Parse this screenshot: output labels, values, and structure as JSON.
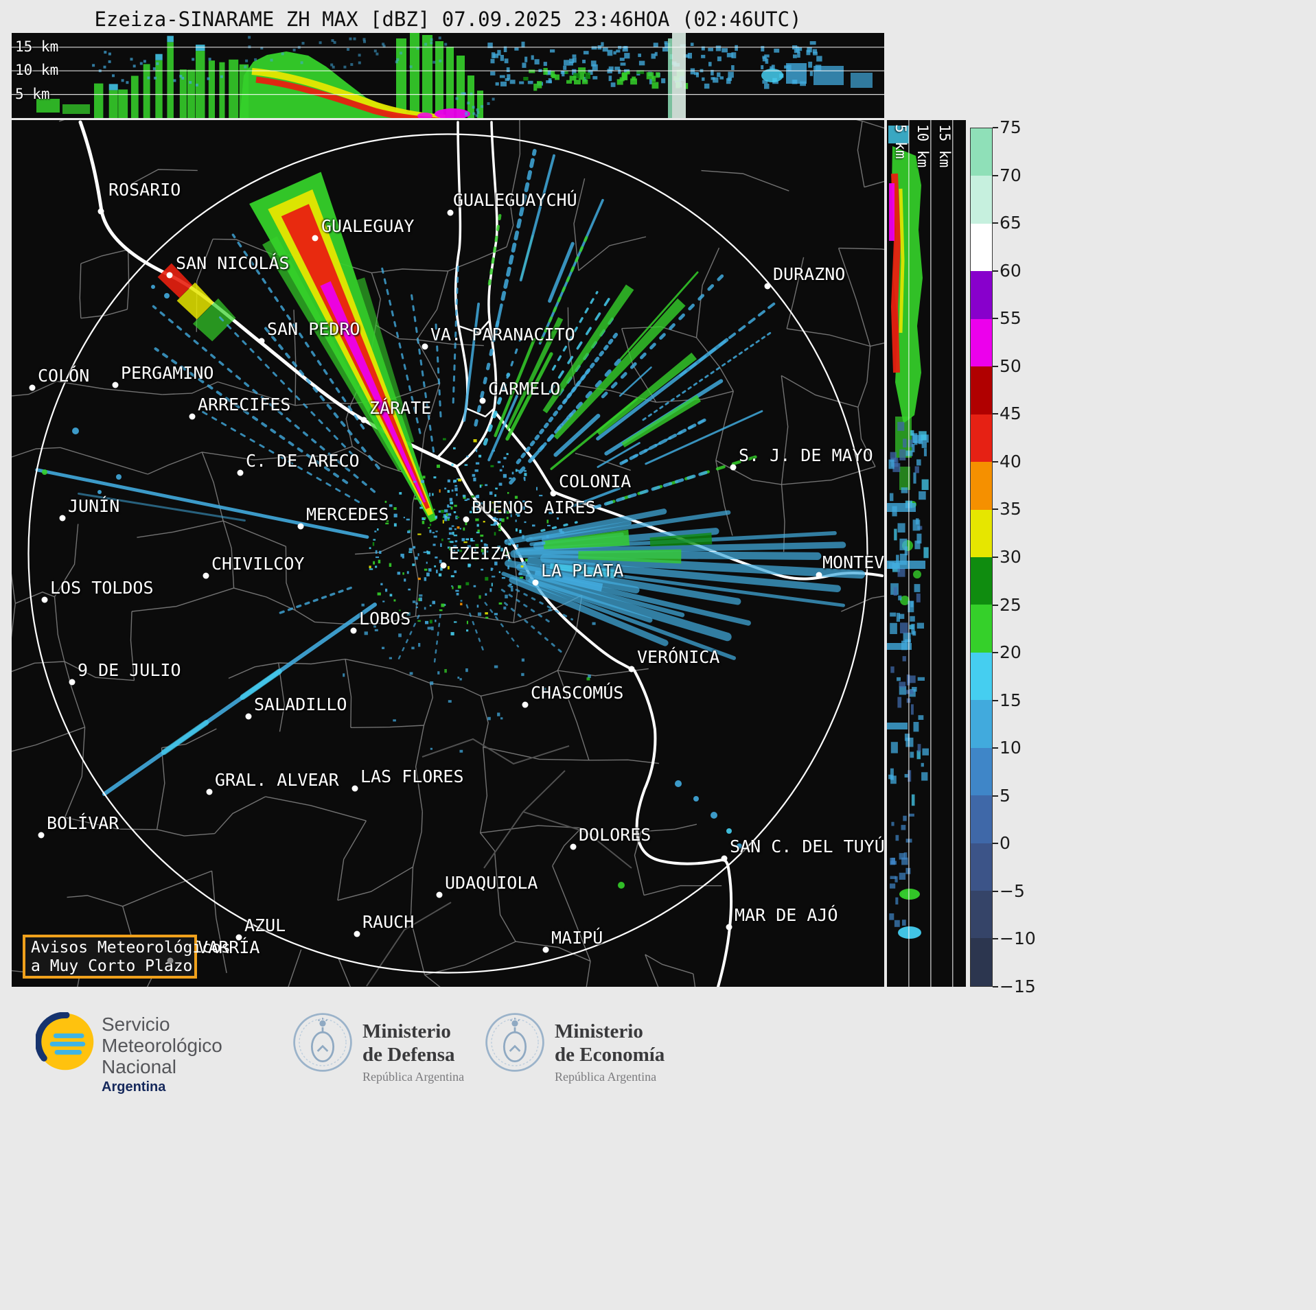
{
  "title": "Ezeiza-SINARAME ZH MAX [dBZ] 07.09.2025 23:46HOA (02:46UTC)",
  "top_panel": {
    "labels": [
      "15 km",
      "10 km",
      "5 km"
    ]
  },
  "right_panel": {
    "labels": [
      "5 km",
      "10 km",
      "15 km"
    ]
  },
  "colorbar": {
    "unit": "dBZ",
    "ticks": [
      "75",
      "70",
      "65",
      "60",
      "55",
      "50",
      "45",
      "40",
      "35",
      "30",
      "25",
      "20",
      "15",
      "10",
      "5",
      "0",
      "−5",
      "−10",
      "−15"
    ],
    "segments": [
      "#8fe0b8",
      "#c6f0de",
      "#ffffff",
      "#8800cc",
      "#ec00ec",
      "#b00000",
      "#e62114",
      "#f59000",
      "#e6e600",
      "#0f8c0f",
      "#35d02a",
      "#45cef0",
      "#41aadd",
      "#3f86c8",
      "#3f68a8",
      "#3c5488",
      "#354468",
      "#2c364f"
    ]
  },
  "map": {
    "alert_box": {
      "line1": "Avisos Meteorológicos",
      "line2": "a Muy Corto Plazo"
    },
    "cities": [
      {
        "name": "ROSARIO",
        "dot": [
          147,
          308
        ],
        "label": [
          158,
          262
        ]
      },
      {
        "name": "GUALEGUAYCHÚ",
        "dot": [
          656,
          310
        ],
        "label": [
          660,
          277
        ]
      },
      {
        "name": "GUALEGUAY",
        "dot": [
          459,
          347
        ],
        "label": [
          468,
          315
        ]
      },
      {
        "name": "SAN NICOLÁS",
        "dot": [
          247,
          401
        ],
        "label": [
          256,
          369
        ]
      },
      {
        "name": "DURAZNO",
        "dot": [
          1118,
          417
        ],
        "label": [
          1126,
          385
        ]
      },
      {
        "name": "SAN PEDRO",
        "dot": [
          381,
          497
        ],
        "label": [
          389,
          465
        ]
      },
      {
        "name": "VA. PARANACITO",
        "dot": [
          619,
          505
        ],
        "label": [
          627,
          473
        ]
      },
      {
        "name": "COLÓN",
        "dot": [
          47,
          565
        ],
        "label": [
          55,
          533
        ]
      },
      {
        "name": "PERGAMINO",
        "dot": [
          168,
          561
        ],
        "label": [
          176,
          529
        ]
      },
      {
        "name": "ARRECIFES",
        "dot": [
          280,
          607
        ],
        "label": [
          288,
          575
        ]
      },
      {
        "name": "ZÁRATE",
        "dot": [
          530,
          612
        ],
        "label": [
          538,
          580
        ]
      },
      {
        "name": "CARMELO",
        "dot": [
          703,
          584
        ],
        "label": [
          711,
          552
        ]
      },
      {
        "name": "C. DE ARECO",
        "dot": [
          350,
          689
        ],
        "label": [
          358,
          657
        ]
      },
      {
        "name": "S. J. DE MAYO",
        "dot": [
          1068,
          681
        ],
        "label": [
          1076,
          649
        ]
      },
      {
        "name": "COLONIA",
        "dot": [
          806,
          719
        ],
        "label": [
          814,
          687
        ]
      },
      {
        "name": "JUNÍN",
        "dot": [
          91,
          755
        ],
        "label": [
          99,
          723
        ]
      },
      {
        "name": "MERCEDES",
        "dot": [
          438,
          767
        ],
        "label": [
          446,
          735
        ]
      },
      {
        "name": "BUENOS AIRES",
        "dot": [
          679,
          757
        ],
        "label": [
          687,
          725
        ]
      },
      {
        "name": "EZEIZA",
        "dot": [
          646,
          824
        ],
        "label": [
          654,
          792
        ]
      },
      {
        "name": "CHIVILCOY",
        "dot": [
          300,
          839
        ],
        "label": [
          308,
          807
        ]
      },
      {
        "name": "LA PLATA",
        "dot": [
          780,
          849
        ],
        "label": [
          788,
          817
        ]
      },
      {
        "name": "LOS TOLDOS",
        "dot": [
          65,
          874
        ],
        "label": [
          73,
          842
        ]
      },
      {
        "name": "MONTEVIDEO",
        "dot": [
          1193,
          838
        ],
        "label": [
          1198,
          805
        ]
      },
      {
        "name": "LOBOS",
        "dot": [
          515,
          919
        ],
        "label": [
          523,
          887
        ]
      },
      {
        "name": "9 DE JULIO",
        "dot": [
          105,
          994
        ],
        "label": [
          113,
          962
        ]
      },
      {
        "name": "VERÓNICA",
        "dot": [
          920,
          975
        ],
        "label": [
          928,
          943
        ]
      },
      {
        "name": "CHASCOMÚS",
        "dot": [
          765,
          1027
        ],
        "label": [
          773,
          995
        ]
      },
      {
        "name": "SALADILLO",
        "dot": [
          362,
          1044
        ],
        "label": [
          370,
          1012
        ]
      },
      {
        "name": "GRAL. ALVEAR",
        "dot": [
          305,
          1154
        ],
        "label": [
          313,
          1122
        ]
      },
      {
        "name": "LAS FLORES",
        "dot": [
          517,
          1149
        ],
        "label": [
          525,
          1117
        ]
      },
      {
        "name": "BOLÍVAR",
        "dot": [
          60,
          1217
        ],
        "label": [
          68,
          1185
        ]
      },
      {
        "name": "DOLORES",
        "dot": [
          835,
          1234
        ],
        "label": [
          843,
          1202
        ]
      },
      {
        "name": "SAN C. DEL TUYÚ",
        "dot": [
          1055,
          1251
        ],
        "label": [
          1063,
          1219
        ]
      },
      {
        "name": "UDAQUIOLA",
        "dot": [
          640,
          1304
        ],
        "label": [
          648,
          1272
        ]
      },
      {
        "name": "RAUCH",
        "dot": [
          520,
          1361
        ],
        "label": [
          528,
          1329
        ]
      },
      {
        "name": "MAR DE AJÓ",
        "dot": [
          1062,
          1351
        ],
        "label": [
          1070,
          1319
        ]
      },
      {
        "name": "AZUL",
        "dot": [
          348,
          1366
        ],
        "label": [
          356,
          1334
        ]
      },
      {
        "name": "MAIPÚ",
        "dot": [
          795,
          1384
        ],
        "label": [
          803,
          1352
        ]
      },
      {
        "name": "OLAVARRÍA",
        "dot": [
          248,
          1400
        ],
        "label": [
          243,
          1366
        ],
        "dot_color": "#8d8d8d",
        "dot_above_box": true
      }
    ]
  },
  "footer": {
    "smn": {
      "lines": [
        "Servicio",
        "Meteorológico",
        "Nacional"
      ],
      "country": "Argentina"
    },
    "ministries": [
      {
        "line1": "Ministerio",
        "line2": "de Defensa",
        "sub": "República Argentina"
      },
      {
        "line1": "Ministerio",
        "line2": "de Economía",
        "sub": "República Argentina"
      }
    ]
  }
}
